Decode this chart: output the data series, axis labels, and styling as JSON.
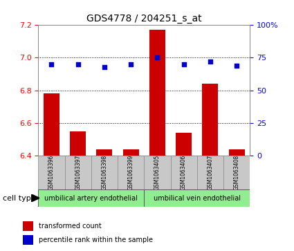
{
  "title": "GDS4778 / 204251_s_at",
  "samples": [
    "GSM1063396",
    "GSM1063397",
    "GSM1063398",
    "GSM1063399",
    "GSM1063405",
    "GSM1063406",
    "GSM1063407",
    "GSM1063408"
  ],
  "bar_values": [
    6.78,
    6.55,
    6.44,
    6.44,
    7.17,
    6.54,
    6.84,
    6.44
  ],
  "percentile_values": [
    70,
    70,
    68,
    70,
    75,
    70,
    72,
    69
  ],
  "bar_color": "#cc0000",
  "dot_color": "#0000cc",
  "ylim_left": [
    6.4,
    7.2
  ],
  "ylim_right": [
    0,
    100
  ],
  "yticks_left": [
    6.4,
    6.6,
    6.8,
    7.0,
    7.2
  ],
  "yticks_right": [
    0,
    25,
    50,
    75,
    100
  ],
  "ytick_labels_right": [
    "0",
    "25",
    "50",
    "75",
    "100%"
  ],
  "group1_label": "umbilical artery endothelial",
  "group2_label": "umbilical vein endothelial",
  "group1_indices": [
    0,
    1,
    2,
    3
  ],
  "group2_indices": [
    4,
    5,
    6,
    7
  ],
  "cell_type_label": "cell type",
  "legend1_label": "transformed count",
  "legend2_label": "percentile rank within the sample",
  "bar_width": 0.6,
  "base_value": 6.4,
  "grid_color": "#000000",
  "plot_bg_color": "#ffffff",
  "group_bg_color": "#c8c8c8",
  "group_color": "#90ee90"
}
